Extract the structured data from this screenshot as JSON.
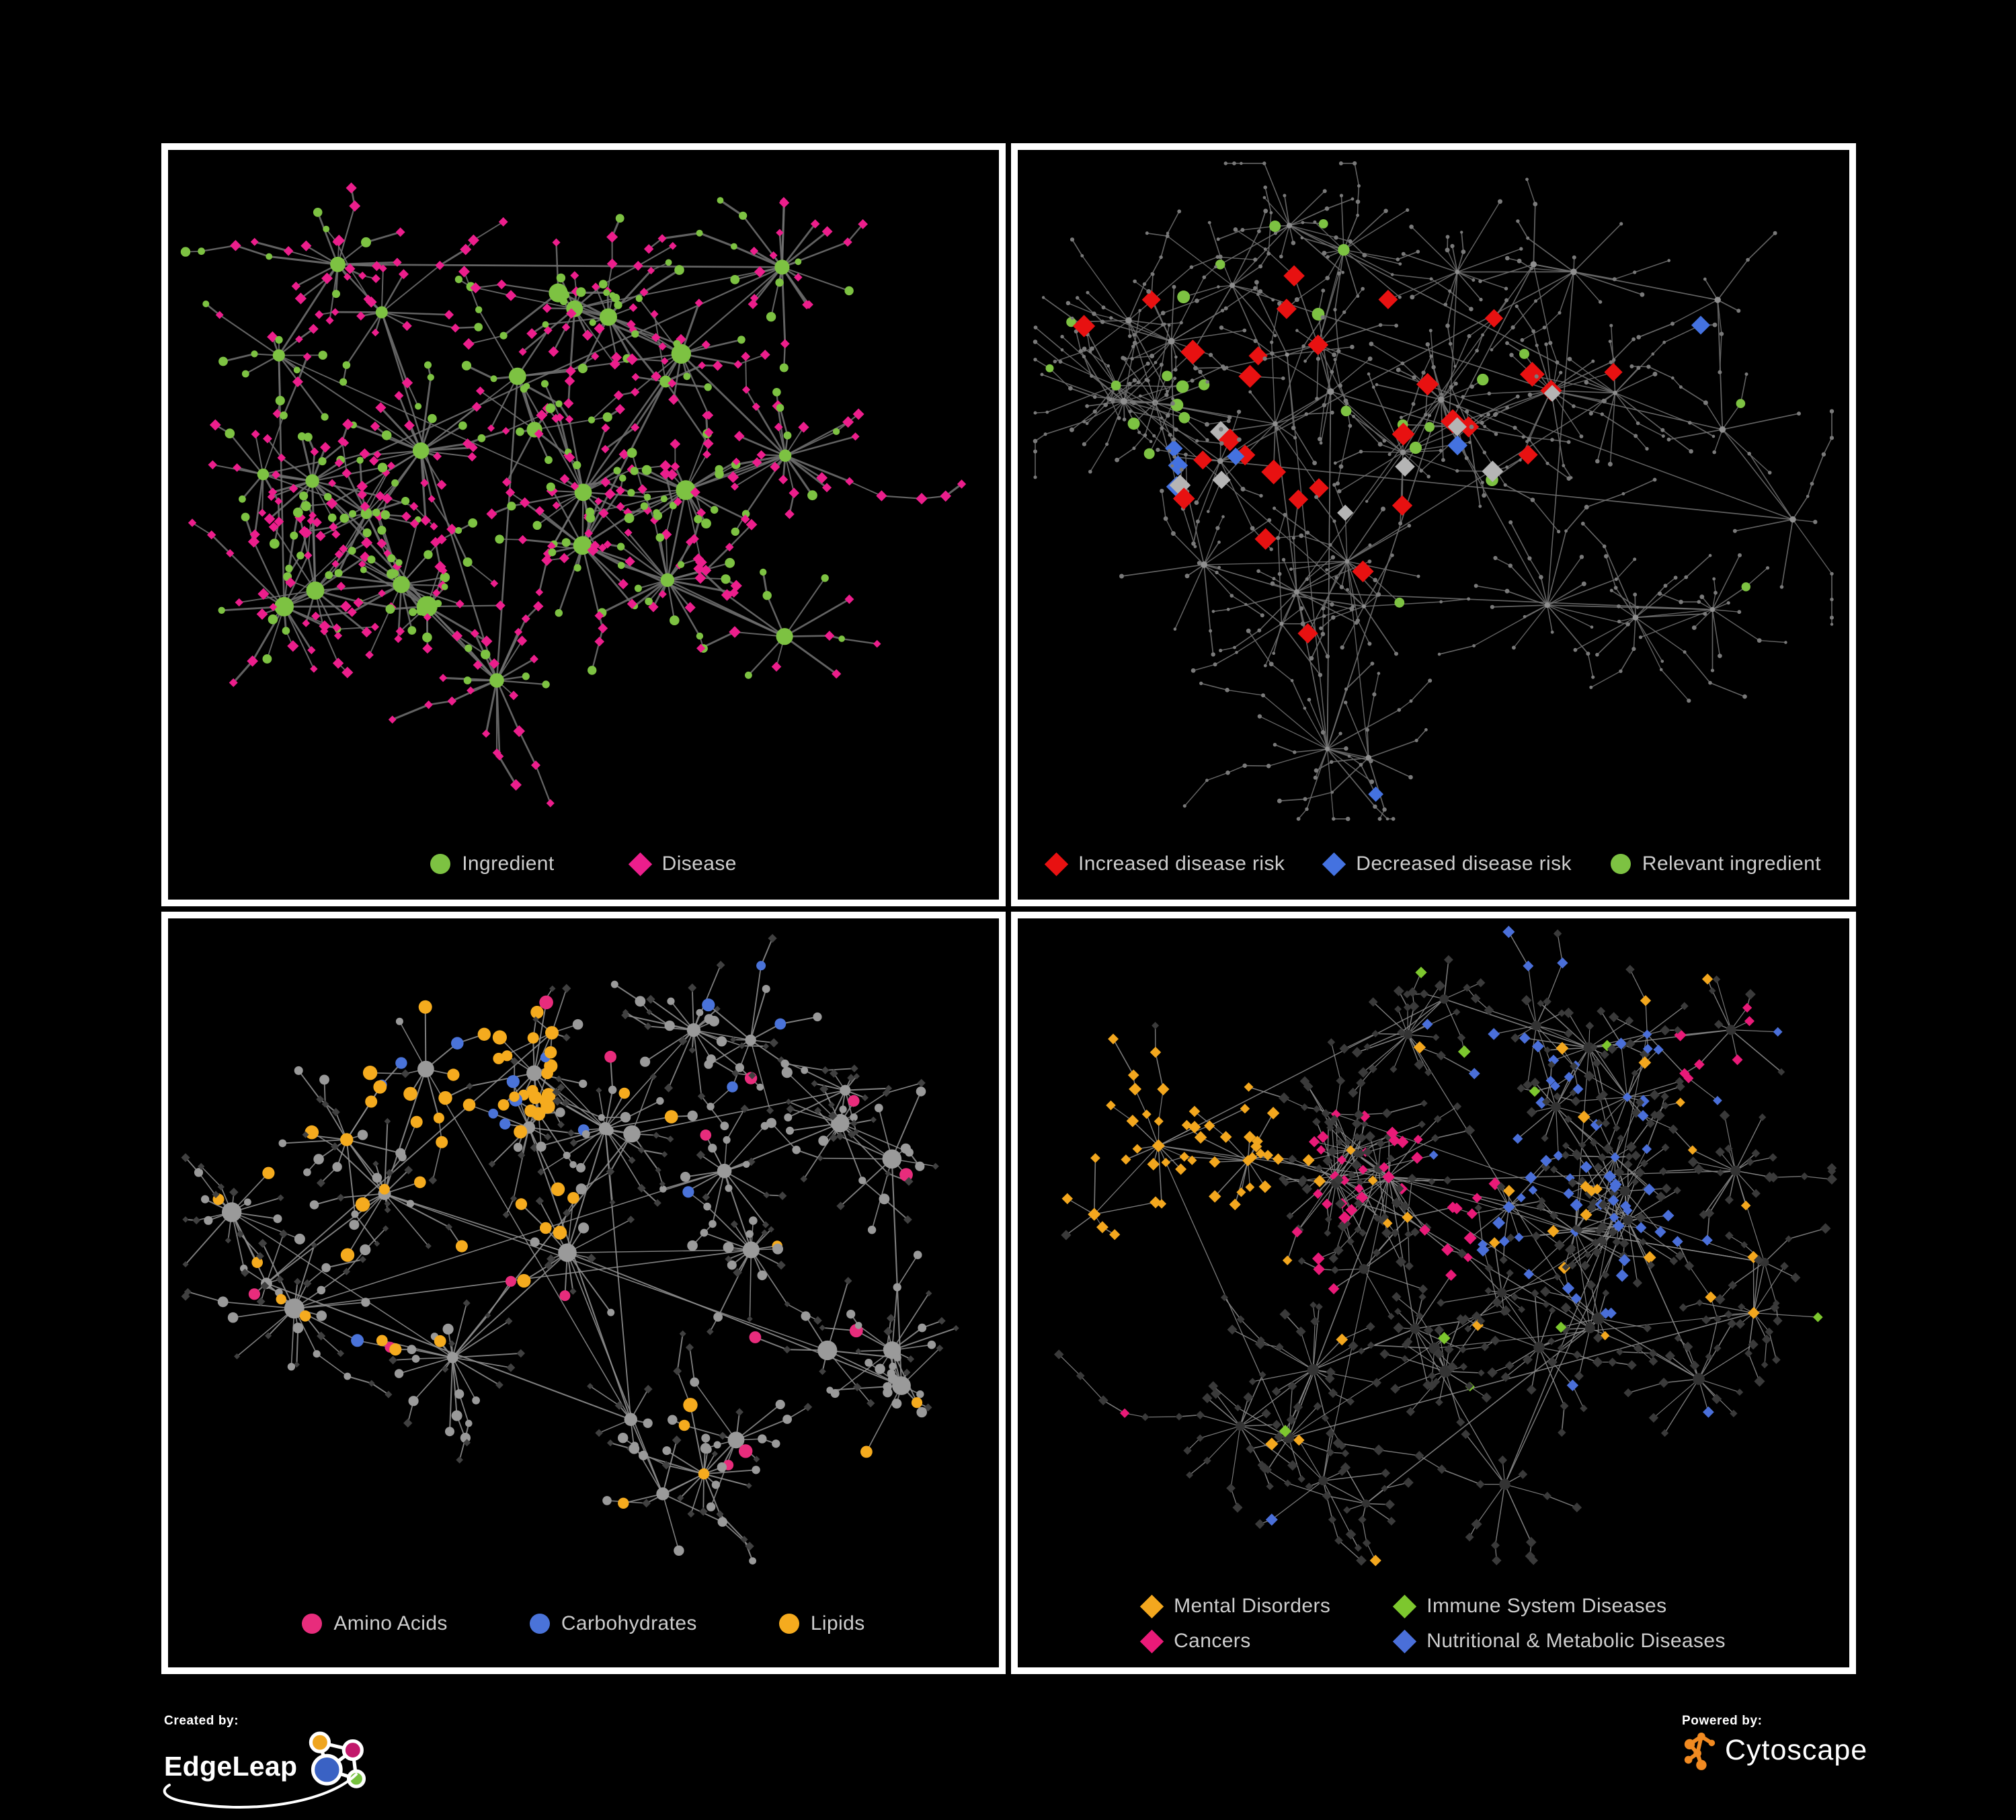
{
  "figure": {
    "background": "#000000",
    "panel_border": "#ffffff",
    "legend_text_color": "#cdcdcd"
  },
  "panels": [
    {
      "name": "ingredient-disease",
      "legend": [
        {
          "label": "Ingredient",
          "shape": "circle",
          "color": "#7dc242"
        },
        {
          "label": "Disease",
          "shape": "diamond",
          "color": "#ec1e8c"
        }
      ],
      "network": {
        "seed": 11,
        "hubs": 26,
        "hub_seeds": [
          [
            0.42,
            0.33
          ],
          [
            0.3,
            0.42
          ],
          [
            0.52,
            0.5
          ],
          [
            0.62,
            0.3
          ]
        ],
        "hub_shape": "circle",
        "hub_color": "#7dc242",
        "hub_size": [
          8,
          16
        ],
        "leaves": [
          5,
          22
        ],
        "spread": 95,
        "chain": 0.33,
        "species": [
          {
            "shape": "diamond",
            "color": "#ec1e8c",
            "size": 7,
            "w": 0.66
          },
          {
            "shape": "circle",
            "color": "#7dc242",
            "size": 6,
            "w": 0.34
          }
        ],
        "edge": {
          "color": "#6f6f6f",
          "width": 2.2,
          "wvar": 1.4
        },
        "overlays": []
      }
    },
    {
      "name": "disease-risk",
      "legend": [
        {
          "label": "Increased disease risk",
          "shape": "diamond",
          "color": "#e81111"
        },
        {
          "label": "Decreased disease risk",
          "shape": "diamond",
          "color": "#4472e0"
        },
        {
          "label": "Relevant ingredient",
          "shape": "circle",
          "color": "#7dc242"
        }
      ],
      "network": {
        "seed": 7,
        "hubs": 36,
        "hub_seeds": [
          [
            0.4,
            0.38
          ],
          [
            0.3,
            0.4
          ],
          [
            0.52,
            0.42
          ],
          [
            0.35,
            0.3
          ]
        ],
        "hub_shape": "circle",
        "hub_color": "#8f8f8f",
        "hub_size": [
          3,
          5
        ],
        "leaves": [
          4,
          17
        ],
        "spread": 105,
        "chain": 0.5,
        "species": [
          {
            "shape": "circle",
            "color": "#7a7a7a",
            "size": 2.8,
            "w": 1
          }
        ],
        "edge": {
          "color": "#6e6e6e",
          "width": 1.5,
          "wvar": 0.4
        },
        "overlays": [
          {
            "shape": "diamond",
            "color": "#e81111",
            "size": 16,
            "count": 24,
            "fx": 0.42,
            "fy": 0.4,
            "fr": 0.24
          },
          {
            "shape": "diamond",
            "color": "#e81111",
            "size": 14,
            "count": 5
          },
          {
            "shape": "diamond",
            "color": "#b5b5b5",
            "size": 14,
            "count": 8,
            "fx": 0.45,
            "fy": 0.42,
            "fr": 0.3
          },
          {
            "shape": "diamond",
            "color": "#4472e0",
            "size": 13,
            "count": 4,
            "fx": 0.25,
            "fy": 0.43,
            "fr": 0.1
          },
          {
            "shape": "diamond",
            "color": "#4472e0",
            "size": 13,
            "count": 3,
            "fx": 0.86,
            "fy": 0.22,
            "fr": 0.07
          },
          {
            "shape": "circle",
            "color": "#7dc242",
            "size": 8,
            "count": 20,
            "fx": 0.36,
            "fy": 0.38,
            "fr": 0.28
          },
          {
            "shape": "circle",
            "color": "#7dc242",
            "size": 7,
            "count": 6
          }
        ]
      }
    },
    {
      "name": "nutrient-classes",
      "legend": [
        {
          "label": "Amino Acids",
          "shape": "circle",
          "color": "#e82c7c"
        },
        {
          "label": "Carbohydrates",
          "shape": "circle",
          "color": "#4a73d9"
        },
        {
          "label": "Lipids",
          "shape": "circle",
          "color": "#f5ab1e"
        }
      ],
      "network": {
        "seed": 23,
        "hubs": 28,
        "hub_seeds": [
          [
            0.33,
            0.25
          ],
          [
            0.27,
            0.42
          ],
          [
            0.48,
            0.47
          ],
          [
            0.55,
            0.3
          ]
        ],
        "hub_shape": "circle",
        "hub_color": "#9a9a9a",
        "hub_size": [
          8,
          15
        ],
        "leaves": [
          5,
          20
        ],
        "spread": 92,
        "chain": 0.33,
        "species": [
          {
            "shape": "diamond",
            "color": "#404040",
            "size": 5.5,
            "w": 0.56
          },
          {
            "shape": "circle",
            "color": "#9a9a9a",
            "size": 6.5,
            "w": 0.44
          }
        ],
        "edge": {
          "color": "#909090",
          "width": 1.7,
          "wvar": 0.6
        },
        "overlays": [
          {
            "shape": "circle",
            "color": "#f5ab1e",
            "size": 9,
            "count": 30,
            "fx": 0.34,
            "fy": 0.22,
            "fr": 0.14
          },
          {
            "shape": "circle",
            "color": "#f5ab1e",
            "size": 9,
            "count": 18,
            "fx": 0.3,
            "fy": 0.46,
            "fr": 0.2
          },
          {
            "shape": "circle",
            "color": "#f5ab1e",
            "size": 9,
            "count": 14
          },
          {
            "shape": "circle",
            "color": "#4a73d9",
            "size": 8.5,
            "count": 9,
            "fx": 0.37,
            "fy": 0.23,
            "fr": 0.1
          },
          {
            "shape": "circle",
            "color": "#4a73d9",
            "size": 8,
            "count": 6
          },
          {
            "shape": "circle",
            "color": "#e82c7c",
            "size": 9,
            "count": 14
          }
        ]
      }
    },
    {
      "name": "disease-classes",
      "legend": [
        {
          "label": "Mental Disorders",
          "shape": "diamond",
          "color": "#f3a71e"
        },
        {
          "label": "Immune System Diseases",
          "shape": "diamond",
          "color": "#7dc72e"
        },
        {
          "label": "Cancers",
          "shape": "diamond",
          "color": "#e91a78"
        },
        {
          "label": "Nutritional & Metabolic Diseases",
          "shape": "diamond",
          "color": "#4a6fd9"
        }
      ],
      "network": {
        "seed": 5,
        "hubs": 42,
        "hub_seeds": [
          [
            0.16,
            0.33
          ],
          [
            0.44,
            0.42
          ],
          [
            0.66,
            0.48
          ],
          [
            0.7,
            0.18
          ],
          [
            0.85,
            0.2
          ]
        ],
        "hub_shape": "circle",
        "hub_color": "#333333",
        "hub_size": [
          6,
          9
        ],
        "leaves": [
          4,
          16
        ],
        "spread": 78,
        "chain": 0.38,
        "species": [
          {
            "shape": "diamond",
            "color": "#3a3a3a",
            "size": 6.5,
            "w": 1
          }
        ],
        "edge": {
          "color": "#8a8a8a",
          "width": 1.3,
          "wvar": 0.5
        },
        "overlays": [
          {
            "shape": "diamond",
            "color": "#f3a71e",
            "size": 8,
            "count": 70,
            "fx": 0.16,
            "fy": 0.33,
            "fr": 0.16
          },
          {
            "shape": "diamond",
            "color": "#f3a71e",
            "size": 8,
            "count": 12
          },
          {
            "shape": "diamond",
            "color": "#e91a78",
            "size": 8,
            "count": 40,
            "fx": 0.44,
            "fy": 0.43,
            "fr": 0.15
          },
          {
            "shape": "diamond",
            "color": "#e91a78",
            "size": 8,
            "count": 8,
            "fx": 0.86,
            "fy": 0.2,
            "fr": 0.07
          },
          {
            "shape": "diamond",
            "color": "#4a6fd9",
            "size": 8,
            "count": 34,
            "fx": 0.67,
            "fy": 0.48,
            "fr": 0.13
          },
          {
            "shape": "diamond",
            "color": "#4a6fd9",
            "size": 8,
            "count": 26,
            "fx": 0.72,
            "fy": 0.17,
            "fr": 0.22
          },
          {
            "shape": "diamond",
            "color": "#4a6fd9",
            "size": 8,
            "count": 10
          },
          {
            "shape": "diamond",
            "color": "#7dc72e",
            "size": 8,
            "count": 9
          }
        ]
      }
    }
  ],
  "footer": {
    "created_by": {
      "label": "Created by:",
      "brand": "EdgeLeap",
      "logo_colors": {
        "orange": "#efa51e",
        "magenta": "#c2186b",
        "blue": "#3a62c4",
        "green": "#76c13e",
        "outline": "#ffffff"
      }
    },
    "powered_by": {
      "label": "Powered by:",
      "brand": "Cytoscape",
      "logo_color": "#f18a21"
    }
  }
}
